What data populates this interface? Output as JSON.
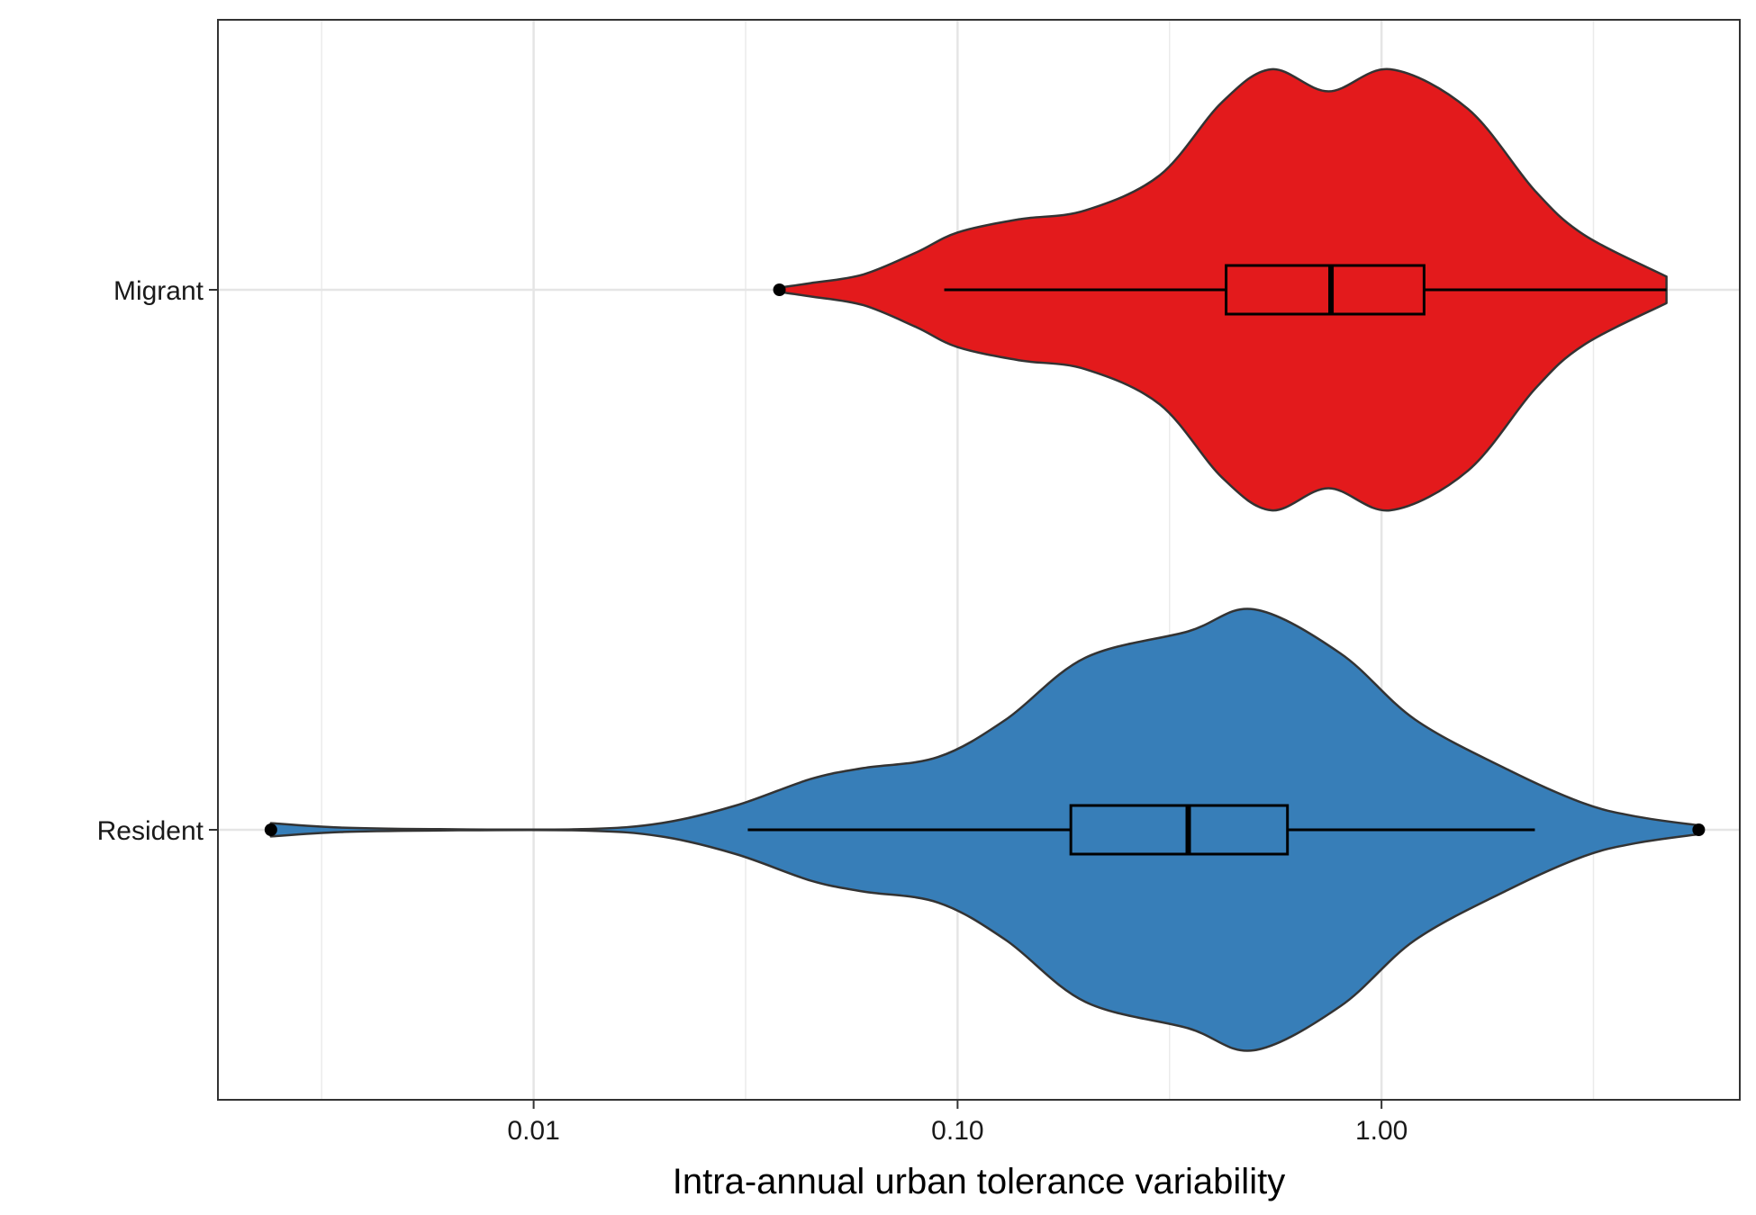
{
  "chart_data": {
    "type": "violin",
    "orientation": "horizontal",
    "title": "",
    "xlabel": "Intra-annual urban tolerance variability",
    "ylabel": "",
    "x_scale": "log10",
    "xlim": [
      0.0018,
      7.0
    ],
    "x_ticks": [
      0.01,
      0.1,
      1.0
    ],
    "x_tick_labels": [
      "0.01",
      "0.10",
      "1.00"
    ],
    "grid": true,
    "legend": "none",
    "categories": [
      "Migrant",
      "Resident"
    ],
    "series": [
      {
        "name": "Migrant",
        "color": "#e31a1c",
        "box": {
          "whisker_low": 0.093,
          "q1": 0.43,
          "median": 0.76,
          "q3": 1.26,
          "whisker_high": 4.7
        },
        "outliers": [
          0.038
        ],
        "density_profile": [
          [
            0.038,
            0.01
          ],
          [
            0.045,
            0.03
          ],
          [
            0.06,
            0.07
          ],
          [
            0.08,
            0.17
          ],
          [
            0.1,
            0.26
          ],
          [
            0.14,
            0.32
          ],
          [
            0.2,
            0.36
          ],
          [
            0.3,
            0.52
          ],
          [
            0.42,
            0.85
          ],
          [
            0.55,
            1.0
          ],
          [
            0.75,
            0.9
          ],
          [
            1.05,
            1.0
          ],
          [
            1.6,
            0.82
          ],
          [
            2.3,
            0.45
          ],
          [
            3.0,
            0.25
          ],
          [
            4.7,
            0.06
          ]
        ]
      },
      {
        "name": "Resident",
        "color": "#377eb8",
        "box": {
          "whisker_low": 0.032,
          "q1": 0.185,
          "median": 0.35,
          "q3": 0.6,
          "whisker_high": 2.3
        },
        "outliers": [
          0.0024,
          5.6
        ],
        "density_profile": [
          [
            0.0024,
            0.03
          ],
          [
            0.0035,
            0.01
          ],
          [
            0.006,
            0.003
          ],
          [
            0.013,
            0.003
          ],
          [
            0.02,
            0.03
          ],
          [
            0.03,
            0.11
          ],
          [
            0.045,
            0.23
          ],
          [
            0.06,
            0.28
          ],
          [
            0.09,
            0.33
          ],
          [
            0.13,
            0.5
          ],
          [
            0.2,
            0.78
          ],
          [
            0.35,
            0.9
          ],
          [
            0.5,
            1.0
          ],
          [
            0.8,
            0.8
          ],
          [
            1.2,
            0.5
          ],
          [
            2.0,
            0.27
          ],
          [
            3.0,
            0.12
          ],
          [
            4.0,
            0.06
          ],
          [
            5.6,
            0.02
          ]
        ]
      }
    ]
  }
}
